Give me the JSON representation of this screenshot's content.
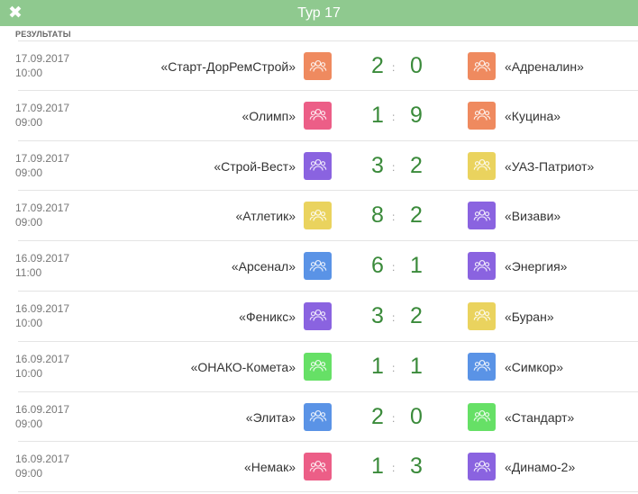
{
  "header": {
    "title": "Тур 17",
    "close_icon": "close-icon"
  },
  "section_label": "РЕЗУЛЬТАТЫ",
  "colors": {
    "orange": "#ef8a5f",
    "pink": "#ec5e87",
    "purple": "#8a63e0",
    "yellow": "#ead35e",
    "blue": "#5a93e6",
    "green": "#66e066"
  },
  "matches": [
    {
      "date": "17.09.2017",
      "time": "10:00",
      "home": "«Старт-ДорРемСтрой»",
      "home_color": "#ef8a5f",
      "home_score": "2",
      "away_score": "0",
      "away": "«Адреналин»",
      "away_color": "#ef8a5f"
    },
    {
      "date": "17.09.2017",
      "time": "09:00",
      "home": "«Олимп»",
      "home_color": "#ec5e87",
      "home_score": "1",
      "away_score": "9",
      "away": "«Куцина»",
      "away_color": "#ef8a5f"
    },
    {
      "date": "17.09.2017",
      "time": "09:00",
      "home": "«Строй-Вест»",
      "home_color": "#8a63e0",
      "home_score": "3",
      "away_score": "2",
      "away": "«УАЗ-Патриот»",
      "away_color": "#ead35e"
    },
    {
      "date": "17.09.2017",
      "time": "09:00",
      "home": "«Атлетик»",
      "home_color": "#ead35e",
      "home_score": "8",
      "away_score": "2",
      "away": "«Визави»",
      "away_color": "#8a63e0"
    },
    {
      "date": "16.09.2017",
      "time": "11:00",
      "home": "«Арсенал»",
      "home_color": "#5a93e6",
      "home_score": "6",
      "away_score": "1",
      "away": "«Энергия»",
      "away_color": "#8a63e0"
    },
    {
      "date": "16.09.2017",
      "time": "10:00",
      "home": "«Феникс»",
      "home_color": "#8a63e0",
      "home_score": "3",
      "away_score": "2",
      "away": "«Буран»",
      "away_color": "#ead35e"
    },
    {
      "date": "16.09.2017",
      "time": "10:00",
      "home": "«ОНАКО-Комета»",
      "home_color": "#66e066",
      "home_score": "1",
      "away_score": "1",
      "away": "«Симкор»",
      "away_color": "#5a93e6"
    },
    {
      "date": "16.09.2017",
      "time": "09:00",
      "home": "«Элита»",
      "home_color": "#5a93e6",
      "home_score": "2",
      "away_score": "0",
      "away": "«Стандарт»",
      "away_color": "#66e066"
    },
    {
      "date": "16.09.2017",
      "time": "09:00",
      "home": "«Немак»",
      "home_color": "#ec5e87",
      "home_score": "1",
      "away_score": "3",
      "away": "«Динамо-2»",
      "away_color": "#8a63e0"
    }
  ]
}
